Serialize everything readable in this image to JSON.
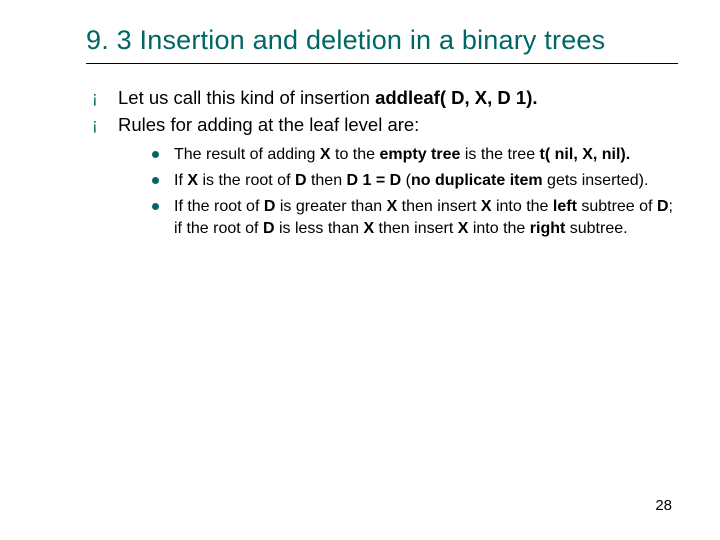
{
  "colors": {
    "accent": "#006666",
    "text": "#000000",
    "background": "#ffffff"
  },
  "typography": {
    "title_fontsize_pt": 20,
    "body_fontsize_pt": 14,
    "sub_fontsize_pt": 12,
    "font_family": "Verdana"
  },
  "title": "9. 3 Insertion and deletion in a binary trees",
  "points": {
    "p1": {
      "pre": "Let us call this kind of insertion ",
      "bold": "addleaf( D, X, D 1)."
    },
    "p2": {
      "text": "Rules for adding at the leaf level are:",
      "sub": {
        "s1": {
          "a": "The result of adding ",
          "b1": "X",
          "b": " to the ",
          "b2": "empty tree",
          "c": " is the tree ",
          "b3": "t( nil, X, nil)."
        },
        "s2": {
          "a": "If ",
          "b1": "X",
          "b": " is the root of ",
          "b2": "D",
          "c": " then ",
          "b3": "D 1 = D",
          "d": " (",
          "b4": "no duplicate item",
          "e": " gets inserted)."
        },
        "s3": {
          "a": "If the root of ",
          "b1": "D",
          "b": " is greater than ",
          "b2": "X",
          "c": " then insert ",
          "b3": "X",
          "d": " into the ",
          "b4": "left",
          "e": " subtree of ",
          "b5": "D",
          "f": "; if the root of ",
          "b6": "D",
          "g": " is less than ",
          "b7": "X",
          "h": " then insert ",
          "b8": "X",
          "i": " into the ",
          "b9": "right",
          "j": " subtree."
        }
      }
    }
  },
  "page_number": "28"
}
